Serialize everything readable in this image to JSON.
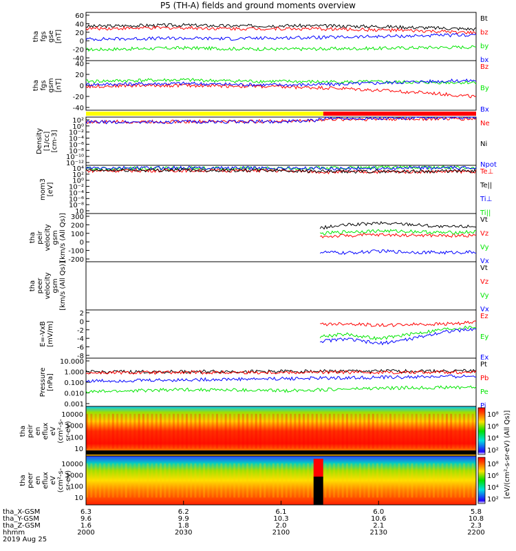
{
  "title": "P5 (TH-A) fields and ground moments overview",
  "colors": {
    "black": "#000000",
    "red": "#ff0000",
    "green": "#00e600",
    "blue": "#0000ff",
    "yellow": "#ffff00",
    "bar_red": "#ff0000"
  },
  "chart_data": [
    {
      "type": "line",
      "id": "fgs_gse",
      "ylabel": [
        "tha",
        "fgs",
        "gse",
        "[nT]"
      ],
      "yticks": [
        60,
        40,
        20,
        0,
        -20,
        -40
      ],
      "ylim": [
        -45,
        65
      ],
      "legend": [
        {
          "name": "Bt",
          "color": "#000000"
        },
        {
          "name": "bz",
          "color": "#ff0000"
        },
        {
          "name": "by",
          "color": "#00e600"
        },
        {
          "name": "bx",
          "color": "#0000ff"
        }
      ],
      "series": [
        {
          "name": "Bt",
          "color": "#000000",
          "x": [
            2000,
            2015,
            2030,
            2045,
            2100,
            2115,
            2130,
            2145,
            2200
          ],
          "y": [
            33,
            35,
            36,
            34,
            35,
            34,
            33,
            30,
            27
          ]
        },
        {
          "name": "bz",
          "color": "#ff0000",
          "x": [
            2000,
            2015,
            2030,
            2045,
            2100,
            2115,
            2130,
            2145,
            2200
          ],
          "y": [
            28,
            29,
            30,
            28,
            28,
            27,
            25,
            22,
            18
          ]
        },
        {
          "name": "by",
          "color": "#00e600",
          "x": [
            2000,
            2015,
            2030,
            2045,
            2100,
            2115,
            2130,
            2145,
            2200
          ],
          "y": [
            -20,
            -18,
            -16,
            -18,
            -19,
            -18,
            -17,
            -15,
            -14
          ]
        },
        {
          "name": "bx",
          "color": "#0000ff",
          "x": [
            2000,
            2015,
            2030,
            2045,
            2100,
            2115,
            2130,
            2145,
            2200
          ],
          "y": [
            4,
            5,
            6,
            5,
            7,
            8,
            10,
            12,
            14
          ]
        }
      ]
    },
    {
      "type": "line",
      "id": "fgs_gsm",
      "ylabel": [
        "tha",
        "fgs",
        "gsm",
        "[nT]"
      ],
      "yticks": [
        40,
        20,
        0,
        -20,
        -40
      ],
      "ylim": [
        -55,
        45
      ],
      "legend": [
        {
          "name": "Bz",
          "color": "#ff0000"
        },
        {
          "name": "By",
          "color": "#00e600"
        },
        {
          "name": "Bx",
          "color": "#0000ff"
        }
      ],
      "series": [
        {
          "name": "Bz",
          "color": "#ff0000",
          "x": [
            2000,
            2015,
            2030,
            2045,
            2100,
            2115,
            2130,
            2145,
            2200
          ],
          "y": [
            -7,
            -5,
            -5,
            -6,
            -8,
            -10,
            -15,
            -20,
            -28
          ]
        },
        {
          "name": "By",
          "color": "#00e600",
          "x": [
            2000,
            2015,
            2030,
            2045,
            2100,
            2115,
            2130,
            2145,
            2200
          ],
          "y": [
            3,
            5,
            6,
            4,
            3,
            2,
            2,
            1,
            1
          ]
        },
        {
          "name": "Bx",
          "color": "#0000ff",
          "x": [
            2000,
            2015,
            2030,
            2045,
            2100,
            2115,
            2130,
            2145,
            2200
          ],
          "y": [
            -3,
            -2,
            -1,
            -3,
            -4,
            -3,
            0,
            3,
            5
          ]
        }
      ]
    },
    {
      "type": "line",
      "id": "density",
      "ylabel": [
        "Density",
        "[1/cc]",
        "[cm-3]"
      ],
      "yscale": "log",
      "yticks": [
        "10²",
        "10⁰",
        "10⁻²",
        "10⁻⁴",
        "10⁻⁶",
        "10⁻⁸",
        "10⁻¹⁰",
        "10⁻¹²"
      ],
      "ylim": [
        -13,
        2
      ],
      "legend": [
        {
          "name": "Ne",
          "color": "#ff0000"
        },
        {
          "name": "Ni",
          "color": "#000000"
        },
        {
          "name": "Npot",
          "color": "#0000ff"
        }
      ],
      "series": [
        {
          "name": "Ne",
          "color": "#ff0000",
          "x": [
            2000,
            2030,
            2100,
            2110,
            2115,
            2130,
            2200
          ],
          "y": [
            0.5,
            0.6,
            0.7,
            1.0,
            1.3,
            1.4,
            1.5
          ]
        },
        {
          "name": "Npot",
          "color": "#0000ff",
          "x": [
            2000,
            2030,
            2100,
            2110,
            2115,
            2130,
            2200
          ],
          "y": [
            0.4,
            0.5,
            0.6,
            0.9,
            1.7,
            1.6,
            1.8
          ]
        }
      ]
    },
    {
      "type": "line",
      "id": "temperature",
      "ylabel": [
        "mom3",
        "[eV]"
      ],
      "yscale": "log",
      "yticks": [
        "10⁴",
        "10²",
        "10⁰",
        "10⁻²",
        "10⁻⁴",
        "10⁻⁶",
        "10⁻⁸",
        "10"
      ],
      "ylim": [
        -11,
        4
      ],
      "legend": [
        {
          "name": "Te⊥",
          "color": "#ff0000"
        },
        {
          "name": "Te||",
          "color": "#000000"
        },
        {
          "name": "Ti⊥",
          "color": "#0000ff"
        },
        {
          "name": "Ti||",
          "color": "#00e600"
        }
      ],
      "series": [
        {
          "name": "Ti||",
          "color": "#00e600",
          "x": [
            2000,
            2030,
            2100,
            2115,
            2130,
            2200
          ],
          "y": [
            3.0,
            3.1,
            3.0,
            3.2,
            3.3,
            3.3
          ]
        },
        {
          "name": "Ti⊥",
          "color": "#0000ff",
          "x": [
            2000,
            2030,
            2100,
            2115,
            2130,
            2200
          ],
          "y": [
            3.1,
            3.2,
            3.1,
            3.0,
            3.1,
            3.2
          ]
        },
        {
          "name": "Te⊥",
          "color": "#ff0000",
          "x": [
            2000,
            2030,
            2100,
            2115,
            2130,
            2200
          ],
          "y": [
            2.3,
            2.4,
            2.3,
            1.9,
            2.0,
            2.1
          ]
        },
        {
          "name": "Te||",
          "color": "#000000",
          "x": [
            2000,
            2030,
            2100,
            2115,
            2130,
            2200
          ],
          "y": [
            2.4,
            2.5,
            2.4,
            2.0,
            2.1,
            2.2
          ]
        }
      ]
    },
    {
      "type": "line",
      "id": "peir_velocity",
      "ylabel": [
        "tha",
        "peir",
        "velocity",
        "gsm",
        "[km/s (All Qs)]"
      ],
      "yticks": [
        300,
        200,
        100,
        0,
        -100,
        -200
      ],
      "ylim": [
        -200,
        300
      ],
      "legend": [
        {
          "name": "Vt",
          "color": "#000000"
        },
        {
          "name": "Vz",
          "color": "#ff0000"
        },
        {
          "name": "Vy",
          "color": "#00e600"
        },
        {
          "name": "Vx",
          "color": "#0000ff"
        }
      ],
      "series": [
        {
          "name": "Vt",
          "color": "#000000",
          "x": [
            2112,
            2120,
            2130,
            2140,
            2150,
            2200
          ],
          "y": [
            150,
            180,
            200,
            190,
            160,
            170
          ]
        },
        {
          "name": "Vz",
          "color": "#ff0000",
          "x": [
            2112,
            2120,
            2130,
            2140,
            2150,
            2200
          ],
          "y": [
            60,
            70,
            80,
            75,
            70,
            75
          ]
        },
        {
          "name": "Vy",
          "color": "#00e600",
          "x": [
            2112,
            2120,
            2130,
            2140,
            2150,
            2200
          ],
          "y": [
            90,
            110,
            120,
            115,
            100,
            110
          ]
        },
        {
          "name": "Vx",
          "color": "#0000ff",
          "x": [
            2112,
            2120,
            2130,
            2140,
            2150,
            2200
          ],
          "y": [
            -100,
            -110,
            -90,
            -100,
            -105,
            -100
          ]
        }
      ]
    },
    {
      "type": "line",
      "id": "peer_velocity",
      "ylabel": [
        "tha",
        "peer",
        "velocity",
        "gsm",
        "[km/s (All Qs)]"
      ],
      "yticks": [],
      "legend": [
        {
          "name": "Vt",
          "color": "#000000"
        },
        {
          "name": "Vz",
          "color": "#ff0000"
        },
        {
          "name": "Vy",
          "color": "#00e600"
        },
        {
          "name": "Vx",
          "color": "#0000ff"
        }
      ],
      "series": []
    },
    {
      "type": "line",
      "id": "efield",
      "ylabel": [
        "E=-VxB",
        "[mV/m]"
      ],
      "yticks": [
        2,
        0,
        -2,
        -4,
        -6,
        -8
      ],
      "ylim": [
        -8,
        2
      ],
      "legend": [
        {
          "name": "Ez",
          "color": "#ff0000"
        },
        {
          "name": "Ey",
          "color": "#00e600"
        },
        {
          "name": "Ex",
          "color": "#0000ff"
        }
      ],
      "series": [
        {
          "name": "Ez",
          "color": "#ff0000",
          "x": [
            2112,
            2120,
            2130,
            2140,
            2150,
            2200
          ],
          "y": [
            -1.0,
            -0.8,
            -1.2,
            -1.0,
            -0.9,
            -0.6
          ]
        },
        {
          "name": "Ey",
          "color": "#00e600",
          "x": [
            2112,
            2120,
            2130,
            2140,
            2150,
            2200
          ],
          "y": [
            -3.5,
            -3.0,
            -4.0,
            -3.0,
            -2.0,
            -1.5
          ]
        },
        {
          "name": "Ex",
          "color": "#0000ff",
          "x": [
            2112,
            2120,
            2130,
            2140,
            2150,
            2200
          ],
          "y": [
            -4.5,
            -4.0,
            -5.0,
            -4.0,
            -2.5,
            -2.0
          ]
        }
      ]
    },
    {
      "type": "line",
      "id": "pressure",
      "ylabel": [
        "Pressure",
        "[nPa]"
      ],
      "yscale": "log",
      "yticks": [
        "10.000",
        "1.000",
        "0.100",
        "0.010",
        "0.001"
      ],
      "ylim": [
        -3,
        1
      ],
      "legend": [
        {
          "name": "Pt",
          "color": "#000000"
        },
        {
          "name": "Pb",
          "color": "#ff0000"
        },
        {
          "name": "Pe",
          "color": "#00e600"
        },
        {
          "name": "Pi",
          "color": "#0000ff"
        }
      ],
      "series": [
        {
          "name": "Pt",
          "color": "#000000",
          "x": [
            2000,
            2030,
            2100,
            2130,
            2200
          ],
          "y": [
            -0.15,
            -0.12,
            -0.1,
            -0.08,
            -0.05
          ]
        },
        {
          "name": "Pb",
          "color": "#ff0000",
          "x": [
            2000,
            2030,
            2100,
            2130,
            2200
          ],
          "y": [
            -0.22,
            -0.2,
            -0.18,
            -0.17,
            -0.15
          ]
        },
        {
          "name": "Pi",
          "color": "#0000ff",
          "x": [
            2000,
            2030,
            2100,
            2130,
            2200
          ],
          "y": [
            -0.9,
            -0.8,
            -0.7,
            -0.6,
            -0.5
          ]
        },
        {
          "name": "Pe",
          "color": "#00e600",
          "x": [
            2000,
            2030,
            2100,
            2130,
            2200
          ],
          "y": [
            -1.8,
            -1.6,
            -1.7,
            -1.5,
            -1.4
          ]
        }
      ]
    },
    {
      "type": "heatmap",
      "id": "peir_en_eflux",
      "ylabel": [
        "tha",
        "peir",
        "en",
        "eflux",
        "eV",
        "(cm²-s-",
        "sr-eV)"
      ],
      "yticks": [
        "10000",
        "1000",
        "100",
        "10"
      ],
      "colorbar_ticks": [
        "10⁸",
        "10⁶",
        "10⁴",
        "10²"
      ],
      "colorbar_label": "[eV/(cm²-s-sr-eV) (All Qs)]"
    },
    {
      "type": "heatmap",
      "id": "peer_en_eflux",
      "ylabel": [
        "tha",
        "peer",
        "en",
        "eflux",
        "eV",
        "(cm²-s-",
        "sr-eV)"
      ],
      "yticks": [
        "10000",
        "1000",
        "100",
        "10"
      ],
      "colorbar_ticks": [
        "10⁸",
        "10⁶",
        "10⁴",
        "10²"
      ],
      "colorbar_label": "[eV/(cm²-s-sr-eV)]"
    }
  ],
  "footer": {
    "row_labels": [
      "tha_X-GSM",
      "tha_Y-GSM",
      "tha_Z-GSM",
      "hhmm",
      "2019 Aug 25"
    ],
    "columns": [
      {
        "x": "6.3",
        "y": "9.6",
        "z": "1.6",
        "t": "2000"
      },
      {
        "x": "6.2",
        "y": "9.9",
        "z": "1.8",
        "t": "2030"
      },
      {
        "x": "6.1",
        "y": "10.3",
        "z": "2.0",
        "t": "2100"
      },
      {
        "x": "6.0",
        "y": "10.6",
        "z": "2.1",
        "t": "2130"
      },
      {
        "x": "5.8",
        "y": "10.8",
        "z": "2.3",
        "t": "2200"
      }
    ]
  }
}
